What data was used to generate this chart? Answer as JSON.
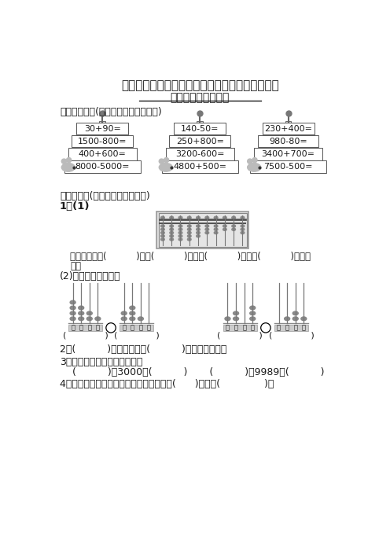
{
  "title": "青岛版二年级数学下册第二单元测试题及答案４套",
  "subtitle": "第二单元跟踪检测卷",
  "section1": "一、我会算。(每小题１分，共１２分)",
  "section2": "二、填空。(每空１分，共３３分)",
  "cake1": [
    "30+90=",
    "1500-800=",
    "400+600=",
    "8000-5000="
  ],
  "cake2": [
    "140-50=",
    "250+800=",
    "3200-600=",
    "4800+500="
  ],
  "cake3": [
    "230+400=",
    "980-80=",
    "3400+700=",
    "7500-500="
  ],
  "fill_label1": "1．(1)",
  "abacus_text1": "这个数写作：(          )，由(          )个百，(          )个十，(          )个一组",
  "abacus_text2": "成。",
  "fill_sub": "(2)写一写，比一比。",
  "q2": "2．(          )个十是一千，(          )个一千是一万。",
  "q3_head": "3．写出与下面各数相邻的数。",
  "q3_body": "    (          )，3000，(          )       (          )，9989，(          )",
  "q4": "4．由５个千、６个十和９个一组成的数是(      )，读作(              )。",
  "bg_color": "#ffffff",
  "text_color": "#1a1a1a"
}
